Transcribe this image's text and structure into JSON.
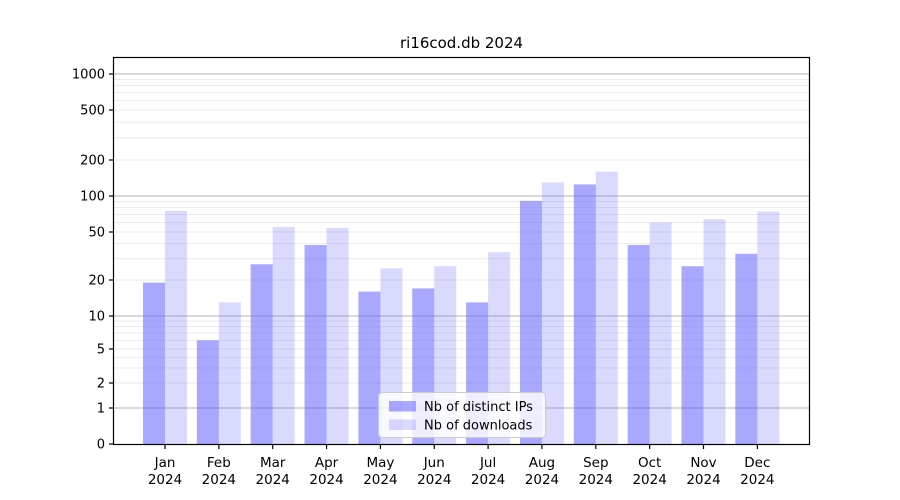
{
  "chart_data": {
    "type": "bar",
    "title": "ri16cod.db 2024",
    "categories": [
      "Jan",
      "Feb",
      "Mar",
      "Apr",
      "May",
      "Jun",
      "Jul",
      "Aug",
      "Sep",
      "Oct",
      "Nov",
      "Dec"
    ],
    "x_tick_second_line": "2024",
    "series": [
      {
        "name": "Nb of distinct IPs",
        "color": "rgba(102,102,255,0.57)",
        "values": [
          19,
          6,
          27,
          39,
          16,
          17,
          13,
          91,
          125,
          39,
          26,
          33
        ]
      },
      {
        "name": "Nb of downloads",
        "color": "rgba(102,102,255,0.24)",
        "values": [
          75,
          13,
          55,
          54,
          25,
          26,
          34,
          130,
          160,
          60,
          64,
          74
        ]
      }
    ],
    "y_axis": {
      "scale": "symlog",
      "tick_values": [
        1000,
        500,
        200,
        100,
        50,
        20,
        10,
        5,
        2,
        1,
        0
      ],
      "tick_labels": [
        "1000",
        "500",
        "200",
        "100",
        "50",
        "20",
        "10",
        "5",
        "2",
        "1",
        "0"
      ],
      "range": [
        0,
        1400
      ]
    },
    "legend": {
      "position": "lower center",
      "entries": [
        "Nb of distinct IPs",
        "Nb of downloads"
      ]
    },
    "grid": {
      "major": true,
      "minor": true
    },
    "colors": {
      "bar_base": "#6666ff",
      "major_grid": "#b3b3b3",
      "minor_grid": "#e8e8e8",
      "axis": "#000000",
      "legend_border": "#cccccc",
      "legend_bg": "rgba(255,255,255,0.8)",
      "text": "#000000"
    }
  }
}
